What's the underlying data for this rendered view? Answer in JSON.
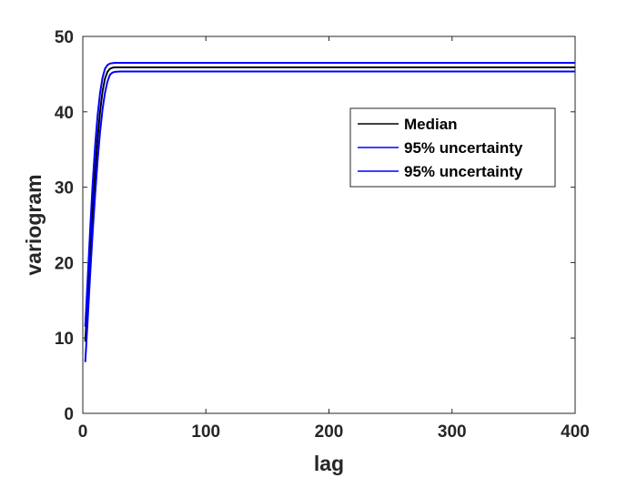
{
  "chart_data": {
    "type": "line",
    "xlabel": "lag",
    "ylabel": "variogram",
    "xlim": [
      0,
      400
    ],
    "ylim": [
      0,
      50
    ],
    "xticks": [
      0,
      100,
      200,
      300,
      400
    ],
    "yticks": [
      0,
      10,
      20,
      30,
      40,
      50
    ],
    "grid": false,
    "legend_position": "top-right",
    "series": [
      {
        "name": "Median",
        "color": "#000000",
        "x": [
          2,
          4,
          6,
          8,
          10,
          12,
          14,
          16,
          18,
          20,
          22,
          24,
          26,
          30,
          40,
          100,
          200,
          300,
          400
        ],
        "y": [
          9.5,
          15.5,
          21.5,
          27.0,
          32.0,
          36.5,
          40.0,
          42.7,
          44.4,
          45.3,
          45.7,
          45.85,
          45.9,
          45.9,
          45.9,
          45.9,
          45.9,
          45.9,
          45.9
        ]
      },
      {
        "name": "95% uncertainty",
        "color": "#0000ff",
        "x": [
          2,
          4,
          6,
          8,
          10,
          12,
          14,
          16,
          18,
          20,
          22,
          24,
          26,
          30,
          40,
          100,
          200,
          300,
          400
        ],
        "y": [
          11.5,
          18.0,
          24.5,
          30.5,
          35.5,
          39.5,
          42.5,
          44.5,
          45.7,
          46.2,
          46.4,
          46.45,
          46.5,
          46.5,
          46.5,
          46.5,
          46.5,
          46.5,
          46.5
        ]
      },
      {
        "name": "95% uncertainty",
        "color": "#0000ff",
        "x": [
          2,
          4,
          6,
          8,
          10,
          12,
          14,
          16,
          18,
          20,
          22,
          24,
          26,
          30,
          40,
          100,
          200,
          300,
          400
        ],
        "y": [
          6.8,
          12.5,
          18.5,
          24.0,
          29.0,
          33.5,
          37.3,
          40.3,
          42.5,
          44.0,
          44.9,
          45.2,
          45.3,
          45.35,
          45.35,
          45.35,
          45.35,
          45.35,
          45.35
        ]
      }
    ]
  }
}
